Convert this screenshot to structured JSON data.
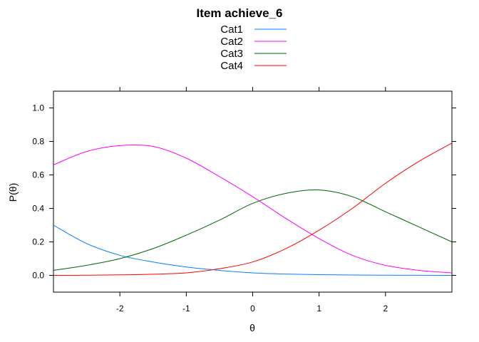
{
  "chart_data": {
    "type": "line",
    "title": "Item achieve_6",
    "xlabel": "θ",
    "ylabel": "P(θ)",
    "xlim": [
      -3,
      3
    ],
    "ylim": [
      -0.1,
      1.1
    ],
    "x_ticks": [
      -2,
      -1,
      0,
      1,
      2
    ],
    "x_tick_labels": [
      "-2",
      "-1",
      "0",
      "1",
      "2"
    ],
    "y_ticks": [
      0.0,
      0.2,
      0.4,
      0.6,
      0.8,
      1.0
    ],
    "y_tick_labels": [
      "0.0",
      "0.2",
      "0.4",
      "0.6",
      "0.8",
      "1.0"
    ],
    "legend_position": "top",
    "grid": false,
    "x": [
      -3.0,
      -2.5,
      -2.0,
      -1.5,
      -1.0,
      -0.5,
      0.0,
      0.5,
      1.0,
      1.5,
      2.0,
      2.5,
      3.0
    ],
    "series": [
      {
        "name": "Cat1",
        "color": "#0080ff",
        "values": [
          0.3,
          0.19,
          0.12,
          0.08,
          0.05,
          0.03,
          0.015,
          0.008,
          0.004,
          0.002,
          0.001,
          0.0005,
          0.0002
        ]
      },
      {
        "name": "Cat2",
        "color": "#ff00ff",
        "values": [
          0.66,
          0.74,
          0.775,
          0.77,
          0.7,
          0.59,
          0.47,
          0.34,
          0.22,
          0.12,
          0.06,
          0.03,
          0.015
        ]
      },
      {
        "name": "Cat3",
        "color": "#006400",
        "values": [
          0.03,
          0.06,
          0.1,
          0.16,
          0.24,
          0.33,
          0.43,
          0.49,
          0.51,
          0.47,
          0.38,
          0.29,
          0.2
        ]
      },
      {
        "name": "Cat4",
        "color": "#ff0000",
        "values": [
          0.0,
          0.001,
          0.003,
          0.007,
          0.015,
          0.04,
          0.08,
          0.16,
          0.27,
          0.4,
          0.55,
          0.68,
          0.79
        ]
      }
    ]
  }
}
